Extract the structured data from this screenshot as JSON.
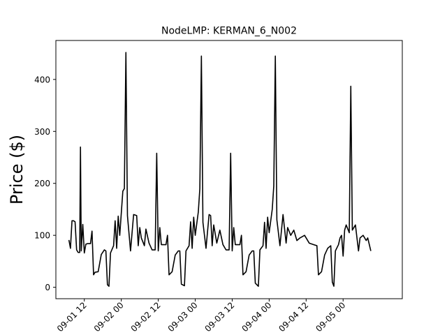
{
  "chart_data": {
    "type": "line",
    "title": "NodeLMP: KERMAN_6_N002",
    "xlabel": "",
    "ylabel": "Price ($)",
    "xlim": [
      "2020-09-01T02:46",
      "2020-09-05T19:13"
    ],
    "ylim": [
      -22,
      475
    ],
    "grid": false,
    "x_ticks": [
      "2020-09-01T12:00",
      "2020-09-02T00:00",
      "2020-09-02T12:00",
      "2020-09-03T00:00",
      "2020-09-03T12:00",
      "2020-09-04T00:00",
      "2020-09-04T12:00",
      "2020-09-05T00:00"
    ],
    "x_tick_labels": [
      "09-01 12",
      "09-02 00",
      "09-02 12",
      "09-03 00",
      "09-03 12",
      "09-04 00",
      "09-04 12",
      "09-05 00"
    ],
    "y_ticks": [
      0,
      100,
      200,
      300,
      400
    ],
    "y_tick_labels": [
      "0",
      "100",
      "200",
      "300",
      "400"
    ],
    "series": [
      {
        "color": "#000000",
        "points": [
          [
            "2020-09-01T07:00",
            91
          ],
          [
            "2020-09-01T07:30",
            75
          ],
          [
            "2020-09-01T08:00",
            128
          ],
          [
            "2020-09-01T08:30",
            128
          ],
          [
            "2020-09-01T09:00",
            126
          ],
          [
            "2020-09-01T09:30",
            72
          ],
          [
            "2020-09-01T10:00",
            67
          ],
          [
            "2020-09-01T10:30",
            67
          ],
          [
            "2020-09-01T10:45",
            270
          ],
          [
            "2020-09-01T11:00",
            70
          ],
          [
            "2020-09-01T11:30",
            121
          ],
          [
            "2020-09-01T12:00",
            66
          ],
          [
            "2020-09-01T12:30",
            83
          ],
          [
            "2020-09-01T13:00",
            84
          ],
          [
            "2020-09-01T14:00",
            84
          ],
          [
            "2020-09-01T14:30",
            108
          ],
          [
            "2020-09-01T15:00",
            24
          ],
          [
            "2020-09-01T15:30",
            29
          ],
          [
            "2020-09-01T16:30",
            30
          ],
          [
            "2020-09-01T17:30",
            63
          ],
          [
            "2020-09-01T18:30",
            72
          ],
          [
            "2020-09-01T19:00",
            70
          ],
          [
            "2020-09-01T19:30",
            5
          ],
          [
            "2020-09-01T20:00",
            2
          ],
          [
            "2020-09-01T20:30",
            66
          ],
          [
            "2020-09-01T21:30",
            80
          ],
          [
            "2020-09-01T22:00",
            128
          ],
          [
            "2020-09-01T22:30",
            75
          ],
          [
            "2020-09-01T23:00",
            137
          ],
          [
            "2020-09-01T23:30",
            100
          ],
          [
            "2020-09-02T00:30",
            185
          ],
          [
            "2020-09-02T01:00",
            190
          ],
          [
            "2020-09-02T01:30",
            452
          ],
          [
            "2020-09-02T02:00",
            138
          ],
          [
            "2020-09-02T03:00",
            70
          ],
          [
            "2020-09-02T04:00",
            140
          ],
          [
            "2020-09-02T05:00",
            138
          ],
          [
            "2020-09-02T05:30",
            80
          ],
          [
            "2020-09-02T06:00",
            115
          ],
          [
            "2020-09-02T06:30",
            95
          ],
          [
            "2020-09-02T07:30",
            80
          ],
          [
            "2020-09-02T08:00",
            112
          ],
          [
            "2020-09-02T09:00",
            85
          ],
          [
            "2020-09-02T10:00",
            72
          ],
          [
            "2020-09-02T11:00",
            72
          ],
          [
            "2020-09-02T11:30",
            258
          ],
          [
            "2020-09-02T12:00",
            70
          ],
          [
            "2020-09-02T12:30",
            115
          ],
          [
            "2020-09-02T13:00",
            82
          ],
          [
            "2020-09-02T14:30",
            82
          ],
          [
            "2020-09-02T15:00",
            100
          ],
          [
            "2020-09-02T15:30",
            24
          ],
          [
            "2020-09-02T16:30",
            30
          ],
          [
            "2020-09-02T17:30",
            62
          ],
          [
            "2020-09-02T18:30",
            70
          ],
          [
            "2020-09-02T19:00",
            70
          ],
          [
            "2020-09-02T19:30",
            6
          ],
          [
            "2020-09-02T20:30",
            3
          ],
          [
            "2020-09-02T21:00",
            70
          ],
          [
            "2020-09-02T22:00",
            80
          ],
          [
            "2020-09-02T22:30",
            126
          ],
          [
            "2020-09-02T23:00",
            75
          ],
          [
            "2020-09-02T23:30",
            135
          ],
          [
            "2020-09-03T00:00",
            100
          ],
          [
            "2020-09-03T01:00",
            145
          ],
          [
            "2020-09-03T01:30",
            190
          ],
          [
            "2020-09-03T02:00",
            445
          ],
          [
            "2020-09-03T02:30",
            125
          ],
          [
            "2020-09-03T03:30",
            75
          ],
          [
            "2020-09-03T04:30",
            140
          ],
          [
            "2020-09-03T05:00",
            138
          ],
          [
            "2020-09-03T05:30",
            80
          ],
          [
            "2020-09-03T06:00",
            120
          ],
          [
            "2020-09-03T07:00",
            85
          ],
          [
            "2020-09-03T08:00",
            110
          ],
          [
            "2020-09-03T09:00",
            82
          ],
          [
            "2020-09-03T10:00",
            72
          ],
          [
            "2020-09-03T11:00",
            72
          ],
          [
            "2020-09-03T11:30",
            258
          ],
          [
            "2020-09-03T12:00",
            70
          ],
          [
            "2020-09-03T12:30",
            115
          ],
          [
            "2020-09-03T13:00",
            82
          ],
          [
            "2020-09-03T14:30",
            82
          ],
          [
            "2020-09-03T15:00",
            100
          ],
          [
            "2020-09-03T15:30",
            24
          ],
          [
            "2020-09-03T16:30",
            30
          ],
          [
            "2020-09-03T17:30",
            62
          ],
          [
            "2020-09-03T18:30",
            70
          ],
          [
            "2020-09-03T19:00",
            70
          ],
          [
            "2020-09-03T19:30",
            8
          ],
          [
            "2020-09-03T20:30",
            2
          ],
          [
            "2020-09-03T21:00",
            72
          ],
          [
            "2020-09-03T22:00",
            80
          ],
          [
            "2020-09-03T22:30",
            125
          ],
          [
            "2020-09-03T23:00",
            75
          ],
          [
            "2020-09-03T23:30",
            135
          ],
          [
            "2020-09-04T00:00",
            105
          ],
          [
            "2020-09-04T01:00",
            150
          ],
          [
            "2020-09-04T01:30",
            195
          ],
          [
            "2020-09-04T02:00",
            445
          ],
          [
            "2020-09-04T02:30",
            130
          ],
          [
            "2020-09-04T03:30",
            80
          ],
          [
            "2020-09-04T04:30",
            140
          ],
          [
            "2020-09-04T05:30",
            85
          ],
          [
            "2020-09-04T06:00",
            115
          ],
          [
            "2020-09-04T07:00",
            100
          ],
          [
            "2020-09-04T08:00",
            110
          ],
          [
            "2020-09-04T09:00",
            90
          ],
          [
            "2020-09-04T10:00",
            95
          ],
          [
            "2020-09-04T11:30",
            100
          ],
          [
            "2020-09-04T13:00",
            85
          ],
          [
            "2020-09-04T14:30",
            82
          ],
          [
            "2020-09-04T15:30",
            80
          ],
          [
            "2020-09-04T16:00",
            24
          ],
          [
            "2020-09-04T17:00",
            30
          ],
          [
            "2020-09-04T18:00",
            62
          ],
          [
            "2020-09-04T19:00",
            75
          ],
          [
            "2020-09-04T20:00",
            80
          ],
          [
            "2020-09-04T20:30",
            10
          ],
          [
            "2020-09-04T21:00",
            2
          ],
          [
            "2020-09-04T21:30",
            70
          ],
          [
            "2020-09-04T22:30",
            82
          ],
          [
            "2020-09-04T23:00",
            95
          ],
          [
            "2020-09-04T23:30",
            100
          ],
          [
            "2020-09-05T00:00",
            60
          ],
          [
            "2020-09-05T00:30",
            110
          ],
          [
            "2020-09-05T01:00",
            120
          ],
          [
            "2020-09-05T02:00",
            105
          ],
          [
            "2020-09-05T02:30",
            387
          ],
          [
            "2020-09-05T03:00",
            110
          ],
          [
            "2020-09-05T04:00",
            120
          ],
          [
            "2020-09-05T05:00",
            70
          ],
          [
            "2020-09-05T05:30",
            95
          ],
          [
            "2020-09-05T06:30",
            100
          ],
          [
            "2020-09-05T07:30",
            90
          ],
          [
            "2020-09-05T08:00",
            95
          ],
          [
            "2020-09-05T09:00",
            70
          ]
        ]
      }
    ]
  }
}
